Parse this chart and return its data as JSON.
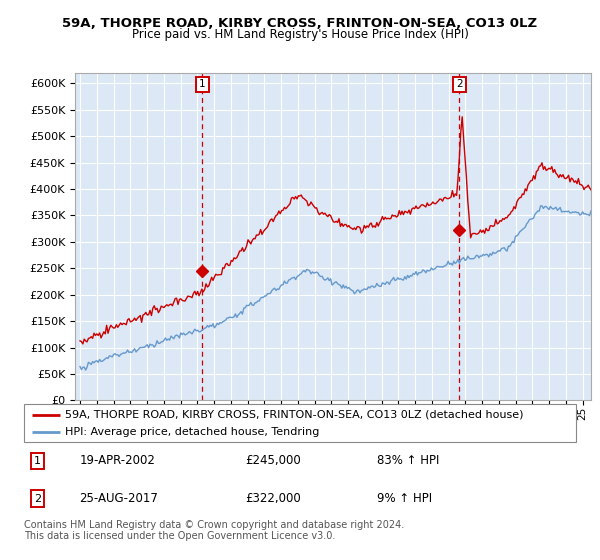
{
  "title": "59A, THORPE ROAD, KIRBY CROSS, FRINTON-ON-SEA, CO13 0LZ",
  "subtitle": "Price paid vs. HM Land Registry's House Price Index (HPI)",
  "ylabel_ticks": [
    "£0",
    "£50K",
    "£100K",
    "£150K",
    "£200K",
    "£250K",
    "£300K",
    "£350K",
    "£400K",
    "£450K",
    "£500K",
    "£550K",
    "£600K"
  ],
  "ytick_values": [
    0,
    50000,
    100000,
    150000,
    200000,
    250000,
    300000,
    350000,
    400000,
    450000,
    500000,
    550000,
    600000
  ],
  "ylim": [
    0,
    620000
  ],
  "sale1_x": 2002.3,
  "sale1_y": 245000,
  "sale2_x": 2017.65,
  "sale2_y": 322000,
  "legend_line1": "59A, THORPE ROAD, KIRBY CROSS, FRINTON-ON-SEA, CO13 0LZ (detached house)",
  "legend_line2": "HPI: Average price, detached house, Tendring",
  "row1_date": "19-APR-2002",
  "row1_price": "£245,000",
  "row1_pct": "83% ↑ HPI",
  "row2_date": "25-AUG-2017",
  "row2_price": "£322,000",
  "row2_pct": "9% ↑ HPI",
  "footer": "Contains HM Land Registry data © Crown copyright and database right 2024.\nThis data is licensed under the Open Government Licence v3.0.",
  "red_color": "#cc0000",
  "blue_color": "#6699cc",
  "vline_color": "#cc0000",
  "plot_bg_color": "#dce8f5",
  "grid_color": "#ffffff",
  "xlim_left": 1994.7,
  "xlim_right": 2025.5
}
